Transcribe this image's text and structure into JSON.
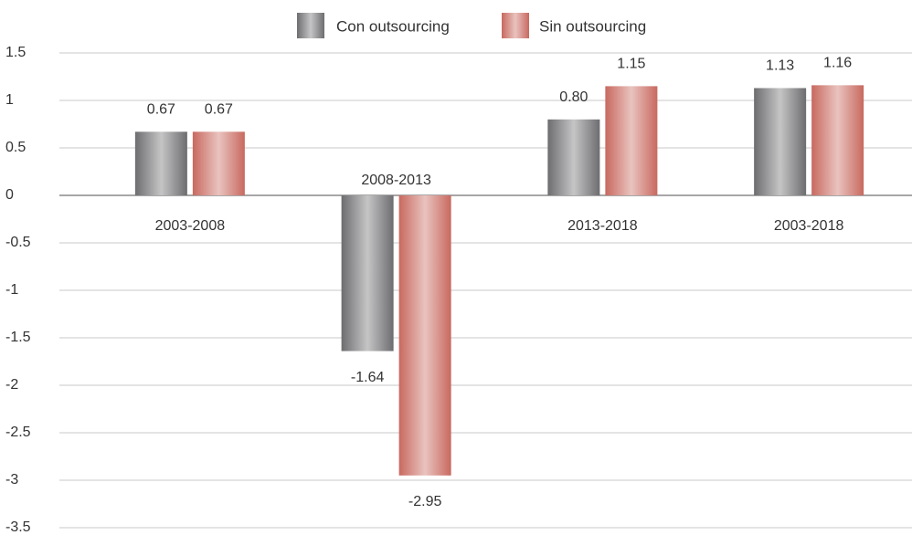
{
  "chart_data": {
    "type": "bar",
    "categories": [
      "2003-2008",
      "2008-2013",
      "2013-2018",
      "2003-2018"
    ],
    "series": [
      {
        "name": "Con outsourcing",
        "color": "#6d6d70",
        "values": [
          0.67,
          -1.64,
          0.8,
          1.13
        ],
        "value_labels": [
          "0.67",
          "-1.64",
          "0.80",
          "1.13"
        ]
      },
      {
        "name": "Sin outsourcing",
        "color": "#c8695f",
        "values": [
          0.67,
          -2.95,
          1.15,
          1.16
        ],
        "value_labels": [
          "0.67",
          "-2.95",
          "1.15",
          "1.16"
        ]
      }
    ],
    "ylim": [
      -3.5,
      1.5
    ],
    "yticks": [
      -3.5,
      -3,
      -2.5,
      -2,
      -1.5,
      -1,
      -0.5,
      0,
      0.5,
      1,
      1.5
    ],
    "grid": true,
    "legend": "top"
  }
}
